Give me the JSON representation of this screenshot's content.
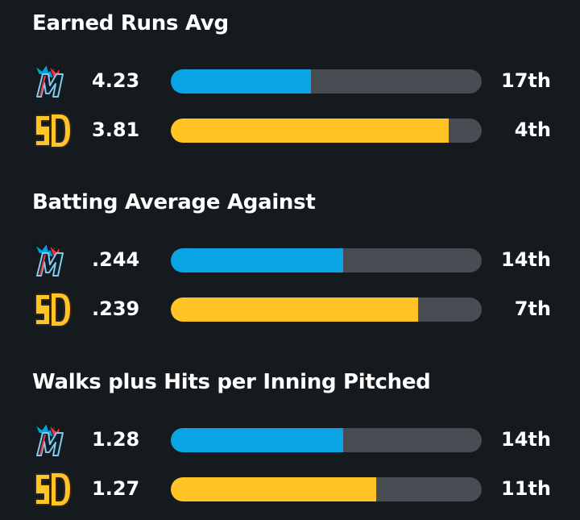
{
  "colors": {
    "background": "#141a1d",
    "marlins_bar": "#0aa3e4",
    "padres_bar": "#ffc423",
    "track": "#474d52",
    "text": "#ffffff"
  },
  "teams": [
    {
      "key": "marlins",
      "logo_icon": "marlins-logo-icon"
    },
    {
      "key": "padres",
      "logo_icon": "padres-logo-icon"
    }
  ],
  "sections": [
    {
      "title": "Earned Runs Avg",
      "rows": [
        {
          "team": "marlins",
          "value": "4.23",
          "rank": "17th",
          "bar_fraction": 0.45
        },
        {
          "team": "padres",
          "value": "3.81",
          "rank": "4th",
          "bar_fraction": 0.895
        }
      ]
    },
    {
      "title": "Batting Average Against",
      "rows": [
        {
          "team": "marlins",
          "value": ".244",
          "rank": "14th",
          "bar_fraction": 0.555
        },
        {
          "team": "padres",
          "value": ".239",
          "rank": "7th",
          "bar_fraction": 0.795
        }
      ]
    },
    {
      "title": "Walks plus Hits per Inning Pitched",
      "rows": [
        {
          "team": "marlins",
          "value": "1.28",
          "rank": "14th",
          "bar_fraction": 0.555
        },
        {
          "team": "padres",
          "value": "1.27",
          "rank": "11th",
          "bar_fraction": 0.66
        }
      ]
    }
  ]
}
